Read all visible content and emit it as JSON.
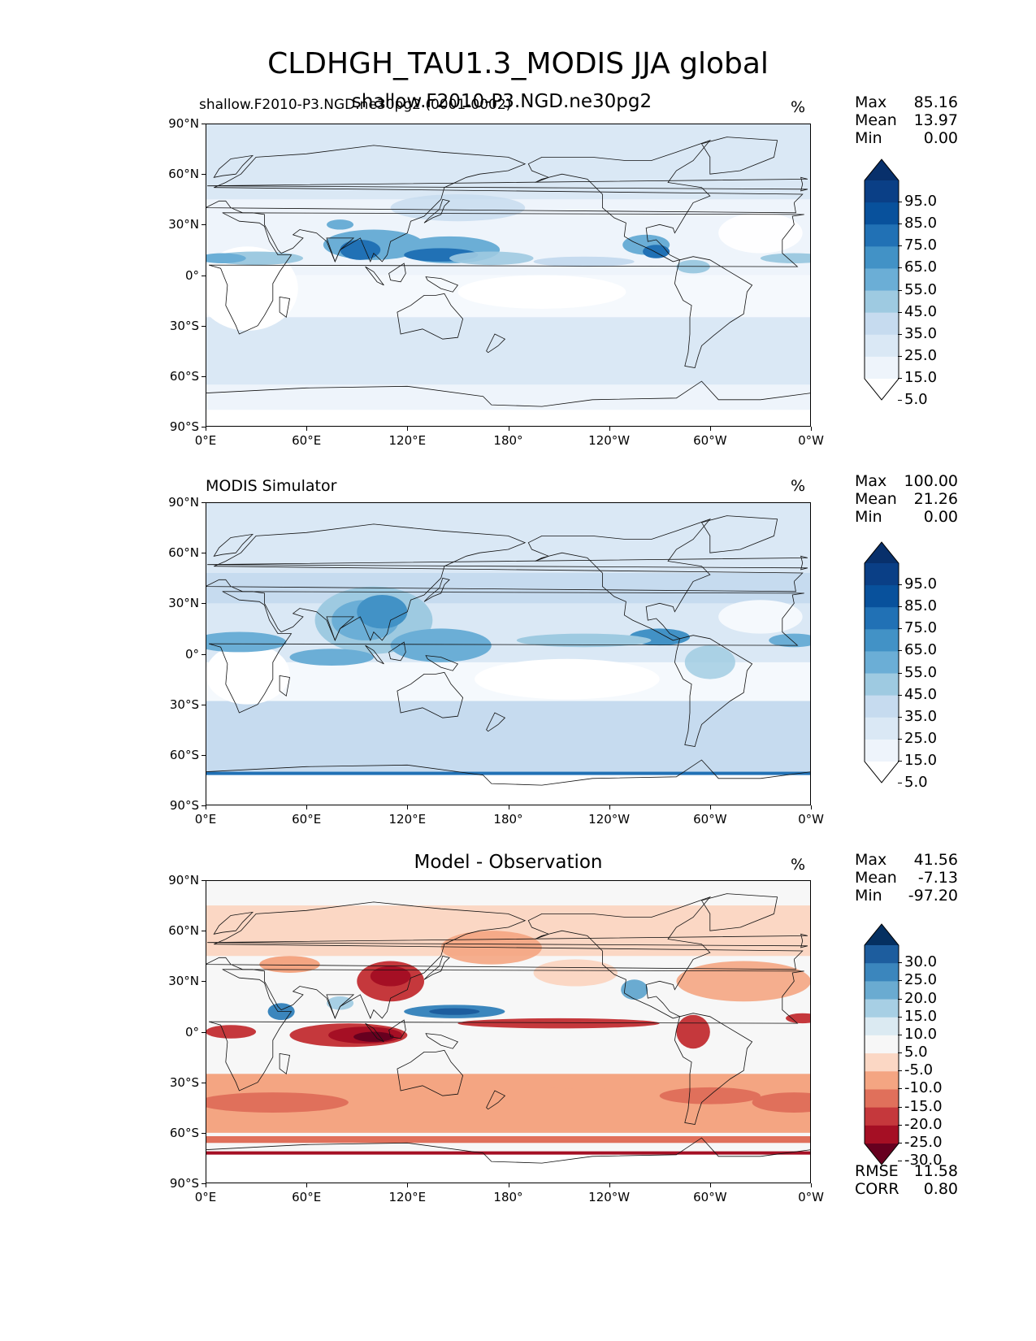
{
  "figure": {
    "title": "CLDHGH_TAU1.3_MODIS JJA global"
  },
  "axes": {
    "lat_ticks": [
      "90°N",
      "60°N",
      "30°N",
      "0°",
      "30°S",
      "60°S",
      "90°S"
    ],
    "lon_ticks": [
      "0°E",
      "60°E",
      "120°E",
      "180°",
      "120°W",
      "60°W",
      "0°W"
    ]
  },
  "panels": [
    {
      "id": "test",
      "left_label": "shallow.F2010-P3.NGD.ne30pg2 (0001-0002)",
      "center_label": "shallow.F2010-P3.NGD.ne30pg2",
      "units": "%",
      "stats": [
        {
          "name": "Max",
          "value": "85.16"
        },
        {
          "name": "Mean",
          "value": "13.97"
        },
        {
          "name": "Min",
          "value": "0.00"
        }
      ],
      "colorbar_labels": [
        "95.0",
        "85.0",
        "75.0",
        "65.0",
        "55.0",
        "45.0",
        "35.0",
        "25.0",
        "15.0",
        "5.0"
      ],
      "colormap": "Blues"
    },
    {
      "id": "reference",
      "left_label": "MODIS Simulator",
      "center_label": "",
      "units": "%",
      "stats": [
        {
          "name": "Max",
          "value": "100.00"
        },
        {
          "name": "Mean",
          "value": "21.26"
        },
        {
          "name": "Min",
          "value": "0.00"
        }
      ],
      "colorbar_labels": [
        "95.0",
        "85.0",
        "75.0",
        "65.0",
        "55.0",
        "45.0",
        "35.0",
        "25.0",
        "15.0",
        "5.0"
      ],
      "colormap": "Blues"
    },
    {
      "id": "difference",
      "left_label": "",
      "center_label": "Model - Observation",
      "units": "%",
      "stats": [
        {
          "name": "Max",
          "value": "41.56"
        },
        {
          "name": "Mean",
          "value": "-7.13"
        },
        {
          "name": "Min",
          "value": "-97.20"
        }
      ],
      "colorbar_labels": [
        "30.0",
        "25.0",
        "20.0",
        "15.0",
        "10.0",
        "5.0",
        "-5.0",
        "-10.0",
        "-15.0",
        "-20.0",
        "-25.0",
        "-30.0"
      ],
      "colormap": "RdBu",
      "metrics": [
        {
          "name": "RMSE",
          "value": "11.58"
        },
        {
          "name": "CORR",
          "value": "0.80"
        }
      ]
    }
  ],
  "colors": {
    "blues": [
      "#ffffff",
      "#eef4fb",
      "#dae8f5",
      "#c6dbef",
      "#9ecae1",
      "#6baed6",
      "#4292c6",
      "#2171b5",
      "#08519c",
      "#0a3f86",
      "#08306b"
    ],
    "rdbu": [
      "#67001f",
      "#a50f24",
      "#c5383c",
      "#e0705b",
      "#f4a582",
      "#fbd7c4",
      "#f7f7f7",
      "#dbeaf2",
      "#a7cfe4",
      "#6aabd1",
      "#3b86bd",
      "#1d5d9e",
      "#053061"
    ]
  }
}
